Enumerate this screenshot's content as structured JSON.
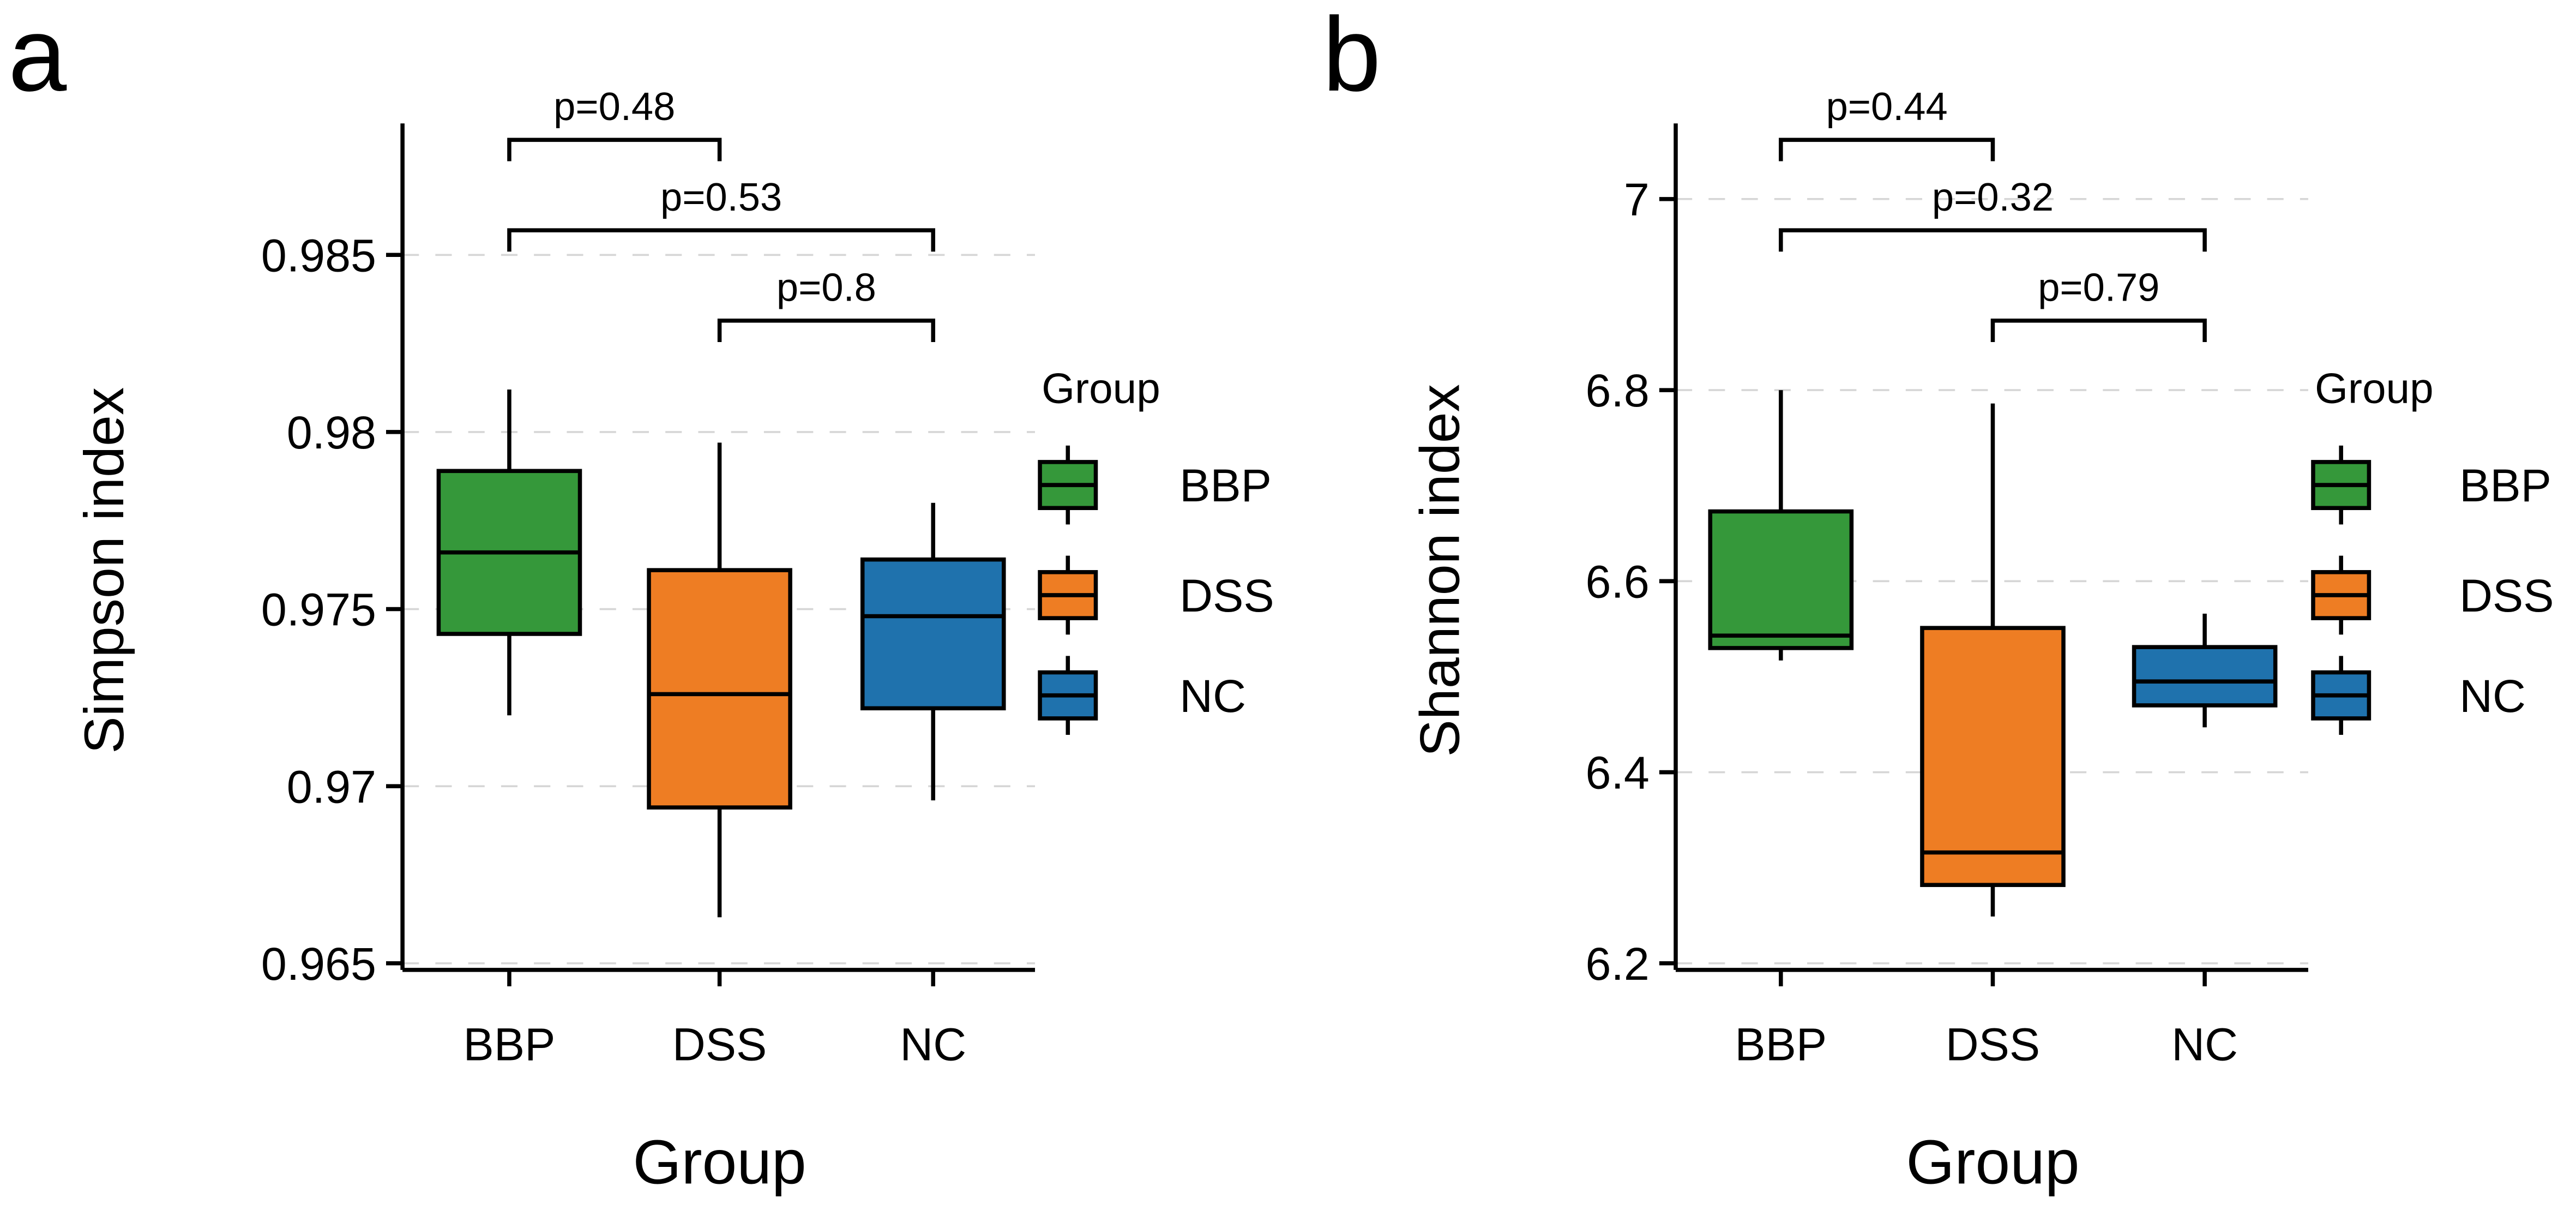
{
  "chart_data": [
    {
      "type": "box",
      "panel_label": "a",
      "xlabel": "Group",
      "ylabel": "Simpson index",
      "categories": [
        "BBP",
        "DSS",
        "NC"
      ],
      "ylim": [
        0.9648,
        0.9885
      ],
      "yticks": [
        0.965,
        0.97,
        0.975,
        0.98,
        0.985
      ],
      "ytick_labels": [
        "0.965",
        "0.97",
        "0.975",
        "0.98",
        "0.985"
      ],
      "grid": "horizontal dashed",
      "boxes": [
        {
          "group": "BBP",
          "whisker_low": 0.972,
          "q1": 0.9743,
          "median": 0.9766,
          "q3": 0.9789,
          "whisker_high": 0.9812
        },
        {
          "group": "DSS",
          "whisker_low": 0.9663,
          "q1": 0.9694,
          "median": 0.9726,
          "q3": 0.9761,
          "whisker_high": 0.9797
        },
        {
          "group": "NC",
          "whisker_low": 0.9696,
          "q1": 0.9722,
          "median": 0.9748,
          "q3": 0.9764,
          "whisker_high": 0.978
        }
      ],
      "comparisons": [
        {
          "from": "BBP",
          "to": "DSS",
          "label": "p=0.48"
        },
        {
          "from": "BBP",
          "to": "NC",
          "label": "p=0.53"
        },
        {
          "from": "DSS",
          "to": "NC",
          "label": "p=0.8"
        }
      ],
      "legend": {
        "title": "Group",
        "position": "right",
        "entries": [
          "BBP",
          "DSS",
          "NC"
        ]
      }
    },
    {
      "type": "box",
      "panel_label": "b",
      "xlabel": "Group",
      "ylabel": "Shannon index",
      "categories": [
        "BBP",
        "DSS",
        "NC"
      ],
      "ylim": [
        6.19,
        7.07
      ],
      "yticks": [
        6.2,
        6.4,
        6.6,
        6.8,
        7.0
      ],
      "ytick_labels": [
        "6.2",
        "6.4",
        "6.6",
        "6.8",
        "7"
      ],
      "grid": "horizontal dashed",
      "boxes": [
        {
          "group": "BBP",
          "whisker_low": 6.517,
          "q1": 6.53,
          "median": 6.543,
          "q3": 6.673,
          "whisker_high": 6.8
        },
        {
          "group": "DSS",
          "whisker_low": 6.249,
          "q1": 6.282,
          "median": 6.316,
          "q3": 6.551,
          "whisker_high": 6.786
        },
        {
          "group": "NC",
          "whisker_low": 6.447,
          "q1": 6.47,
          "median": 6.495,
          "q3": 6.531,
          "whisker_high": 6.566
        }
      ],
      "comparisons": [
        {
          "from": "BBP",
          "to": "DSS",
          "label": "p=0.44"
        },
        {
          "from": "BBP",
          "to": "NC",
          "label": "p=0.32"
        },
        {
          "from": "DSS",
          "to": "NC",
          "label": "p=0.79"
        }
      ],
      "legend": {
        "title": "Group",
        "position": "right",
        "entries": [
          "BBP",
          "DSS",
          "NC"
        ]
      }
    }
  ],
  "colors": {
    "BBP": "#35983a",
    "DSS": "#ee7d23",
    "NC": "#1f72ad",
    "grid": "#d6d6d6",
    "axis": "#000000"
  }
}
